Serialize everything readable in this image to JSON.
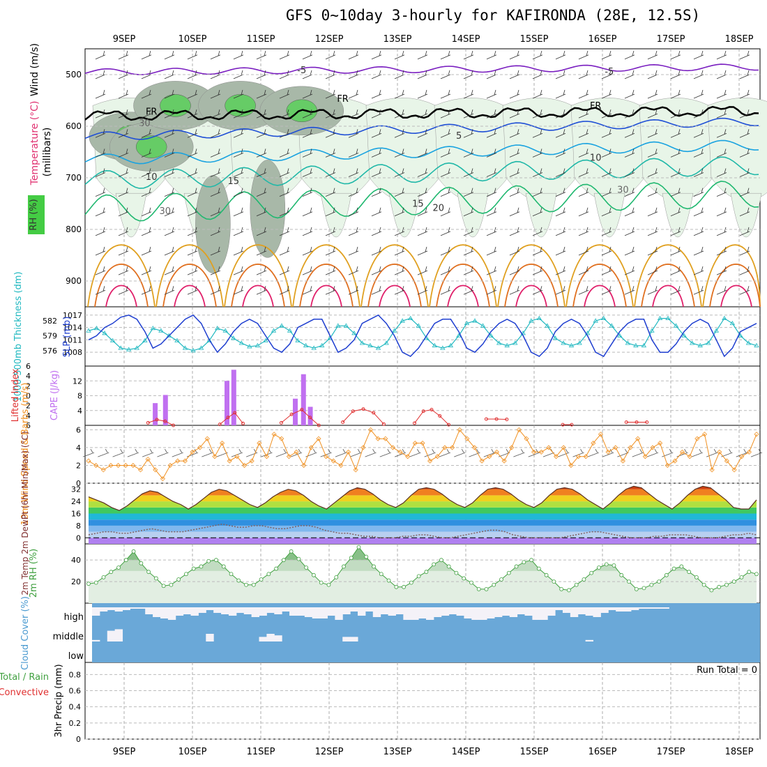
{
  "title": "GFS 0~10day 3-hourly for KAFIRONDA (28E, 12.5S)",
  "date_labels": [
    "9SEP",
    "10SEP",
    "11SEP",
    "12SEP",
    "13SEP",
    "14SEP",
    "15SEP",
    "16SEP",
    "17SEP",
    "18SEP"
  ],
  "colors": {
    "rh_fill": [
      "#e8f5e8",
      "#bfe0bf",
      "#a8b8a8",
      "#66cc66",
      "#33cc33"
    ],
    "temp_lines": [
      "#7a1fc0",
      "#1f4fd6",
      "#1aa3e0",
      "#20b8a8",
      "#20b870",
      "#e0a020",
      "#e07020",
      "#e0206a"
    ],
    "slp": "#1f3fd0",
    "thickness": "#20b8c0",
    "cape": "#c070f0",
    "li": "#e03030",
    "wind": "#f09020",
    "rh2m": "#40a040",
    "cloud": "#6aa8d8",
    "cloud_clear": "#f4f2f8"
  },
  "chart_data": [
    {
      "type": "contour",
      "panel": "upper-air",
      "ylabel_parts": [
        "Wind (m/s)",
        "Temperature (°C)",
        "RH (%)"
      ],
      "yunit": "(millibars)",
      "yticks": [
        500,
        600,
        700,
        800,
        900
      ],
      "ylim": [
        450,
        950
      ],
      "freezing_label": "FR",
      "contour_labels": [
        {
          "text": "-5",
          "day": 2.6,
          "p": 497
        },
        {
          "text": "-5",
          "day": 7.1,
          "p": 500
        },
        {
          "text": "FR",
          "day": 0.4,
          "p": 578
        },
        {
          "text": "FR",
          "day": 3.2,
          "p": 553
        },
        {
          "text": "FR",
          "day": 6.9,
          "p": 566
        },
        {
          "text": "5",
          "day": 4.9,
          "p": 624
        },
        {
          "text": "10",
          "day": 0.4,
          "p": 704
        },
        {
          "text": "10",
          "day": 6.9,
          "p": 667
        },
        {
          "text": "15",
          "day": 1.6,
          "p": 712
        },
        {
          "text": "15",
          "day": 4.3,
          "p": 756
        },
        {
          "text": "20",
          "day": 4.6,
          "p": 764
        },
        {
          "text": "30",
          "day": 0.3,
          "p": 600
        },
        {
          "text": "30",
          "day": 0.6,
          "p": 770
        },
        {
          "text": "30",
          "day": 7.3,
          "p": 729
        }
      ]
    },
    {
      "type": "line",
      "panel": "pressure",
      "ylabel": "SLP (mb)",
      "ylabel_right": "1000-500mb Thickness (dm)",
      "yticks_left": [
        576,
        579,
        582
      ],
      "yticks_right": [
        1008,
        1011,
        1014,
        1017
      ],
      "ylim_right": [
        1006,
        1018
      ],
      "series": [
        {
          "values": [
            1011,
            1012,
            1014,
            1015,
            1016.5,
            1017,
            1016,
            1013,
            1009,
            1010,
            1012,
            1014,
            1016,
            1017,
            1015,
            1011,
            1008,
            1010,
            1013,
            1015,
            1016,
            1015,
            1012,
            1009,
            1008,
            1010,
            1014,
            1015,
            1016,
            1016,
            1012,
            1008,
            1009,
            1011,
            1015,
            1016,
            1017,
            1015,
            1012,
            1008,
            1007,
            1009,
            1012,
            1015,
            1016,
            1016,
            1013,
            1009,
            1008,
            1010,
            1013,
            1015,
            1016,
            1015,
            1012,
            1008,
            1007,
            1009,
            1013,
            1015,
            1016,
            1015,
            1012,
            1008,
            1007,
            1010,
            1013,
            1015,
            1016,
            1016,
            1011,
            1008,
            1008,
            1010,
            1013,
            1015,
            1016,
            1015,
            1011,
            1007,
            1009,
            1013,
            1014,
            1015
          ]
        },
        {
          "values": [
            580,
            580.5,
            579.5,
            578,
            576.5,
            576.2,
            576.5,
            578,
            580.5,
            580,
            579,
            578,
            576.5,
            576,
            576.5,
            578,
            580.5,
            580,
            578.5,
            577.5,
            576.8,
            577,
            578,
            580,
            581,
            580,
            578,
            577,
            576.5,
            577,
            578.5,
            581,
            581,
            579.5,
            577.5,
            577,
            576.5,
            577.5,
            580,
            582,
            582.5,
            581,
            578.5,
            577,
            576.5,
            577,
            579,
            581.5,
            582,
            581,
            579,
            577.5,
            577,
            577.5,
            579.5,
            582,
            582.5,
            581,
            578.5,
            577.5,
            577,
            577.5,
            579.5,
            582,
            582.5,
            581,
            579,
            577.5,
            577,
            577,
            580,
            582.5,
            582.5,
            581,
            579,
            577.5,
            577,
            577.5,
            580,
            582.5,
            581.5,
            579,
            577.5,
            577
          ]
        }
      ]
    },
    {
      "type": "bar",
      "panel": "instability",
      "ylabel": "Lifted Index",
      "ylabel_right": "CAPE (J/kg)",
      "yticks_left": [
        -6,
        -4,
        -2,
        0,
        2,
        4,
        6
      ],
      "yticks_right": [
        4,
        8,
        12
      ],
      "ylim_right": [
        0,
        16
      ],
      "cape": [
        {
          "day": 0.45,
          "v": 6
        },
        {
          "day": 0.6,
          "v": 8.2
        },
        {
          "day": 1.5,
          "v": 12
        },
        {
          "day": 1.6,
          "v": 15
        },
        {
          "day": 2.5,
          "v": 7.2
        },
        {
          "day": 2.62,
          "v": 13.8
        },
        {
          "day": 2.72,
          "v": 5
        }
      ],
      "li_values": [
        {
          "day": 0.35,
          "v": 0.8
        },
        {
          "day": 0.48,
          "v": 1.8
        },
        {
          "day": 0.6,
          "v": 1.3
        },
        {
          "day": 0.72,
          "v": 0
        },
        {
          "day": 1.4,
          "v": 0.3
        },
        {
          "day": 1.52,
          "v": 2.5
        },
        {
          "day": 1.62,
          "v": 4
        },
        {
          "day": 1.74,
          "v": 0.6
        },
        {
          "day": 2.3,
          "v": 0.8
        },
        {
          "day": 2.45,
          "v": 3.5
        },
        {
          "day": 2.6,
          "v": 5
        },
        {
          "day": 2.72,
          "v": 2.5
        },
        {
          "day": 2.85,
          "v": 0
        },
        {
          "day": 3.2,
          "v": 1
        },
        {
          "day": 3.35,
          "v": 4.5
        },
        {
          "day": 3.5,
          "v": 5.2
        },
        {
          "day": 3.65,
          "v": 4
        },
        {
          "day": 3.8,
          "v": 0.4
        },
        {
          "day": 4.25,
          "v": 0.7
        },
        {
          "day": 4.38,
          "v": 4.5
        },
        {
          "day": 4.5,
          "v": 5
        },
        {
          "day": 4.62,
          "v": 3
        },
        {
          "day": 4.75,
          "v": 0.2
        },
        {
          "day": 5.3,
          "v": 2
        },
        {
          "day": 5.45,
          "v": 2
        },
        {
          "day": 5.6,
          "v": 1.9
        },
        {
          "day": 6.42,
          "v": 0.2
        },
        {
          "day": 6.55,
          "v": 0.2
        },
        {
          "day": 7.35,
          "v": 1
        },
        {
          "day": 7.5,
          "v": 1
        },
        {
          "day": 7.65,
          "v": 1
        }
      ]
    },
    {
      "type": "line",
      "panel": "wind",
      "ylabel": "10m Wind Speed & Barbs (m/s)",
      "yticks": [
        0,
        2,
        4,
        6
      ],
      "ylim": [
        0,
        6.5
      ],
      "values": [
        2.5,
        2,
        1.5,
        2,
        2,
        2,
        2,
        1.5,
        2.7,
        1.5,
        0.5,
        2,
        2.5,
        2.5,
        3.5,
        4,
        5,
        3,
        4.5,
        2.5,
        3,
        2,
        2.5,
        4.5,
        3,
        5.5,
        5,
        3,
        3.5,
        2,
        4,
        5,
        3,
        2.5,
        2,
        3.5,
        1.5,
        4,
        6,
        5,
        5,
        4,
        3.5,
        3,
        4.5,
        4.5,
        2.5,
        3,
        4,
        4,
        6,
        5,
        4,
        2.5,
        3,
        3.5,
        2.5,
        4,
        6,
        5,
        3.5,
        3.5,
        4,
        3,
        4,
        2,
        3,
        3,
        4.5,
        5.5,
        3.5,
        4,
        2.5,
        4,
        5,
        3,
        4,
        4.5,
        2,
        2.5,
        3.5,
        3,
        5,
        5.5,
        1.5,
        3.5,
        2.5,
        1.5,
        3,
        3.5,
        5.5
      ]
    },
    {
      "type": "area",
      "panel": "temperature",
      "ylabel": "2m Temp 2m DewPt (6hr Min/Max) (°C)",
      "yticks": [
        0,
        8,
        16,
        24,
        32
      ],
      "ylim": [
        -4,
        36
      ],
      "temp_values": [
        27,
        25,
        23,
        20,
        18,
        21,
        25,
        29,
        31,
        30,
        27,
        24,
        22,
        19,
        22,
        26,
        30,
        32,
        31,
        28,
        25,
        22,
        20,
        23,
        27,
        30,
        32,
        31,
        28,
        24,
        21,
        19,
        23,
        27,
        31,
        33,
        32,
        29,
        25,
        22,
        20,
        23,
        28,
        32,
        33,
        32,
        29,
        25,
        22,
        20,
        23,
        28,
        32,
        33,
        32,
        29,
        25,
        22,
        20,
        23,
        28,
        32,
        33,
        32,
        29,
        25,
        22,
        19,
        23,
        28,
        32,
        34,
        33,
        29,
        25,
        22,
        19,
        23,
        28,
        32,
        34,
        33,
        29,
        25,
        20,
        19,
        19,
        25
      ],
      "dew_values": [
        2,
        3,
        4,
        4,
        3,
        3,
        4,
        5,
        6,
        5,
        4,
        4,
        4,
        5,
        6,
        7,
        8,
        9,
        8,
        7,
        7,
        8,
        8,
        7,
        6,
        6,
        7,
        8,
        8,
        7,
        5,
        4,
        3,
        3,
        2,
        1,
        1,
        0,
        0,
        0,
        1,
        1,
        2,
        2,
        1,
        0,
        0,
        1,
        2,
        3,
        4,
        5,
        5,
        4,
        2,
        1,
        0,
        0,
        0,
        0,
        0,
        1,
        2,
        3,
        4,
        4,
        3,
        2,
        1,
        0,
        0,
        0,
        1,
        1,
        2,
        2,
        2,
        1,
        0,
        0,
        0,
        1,
        2,
        2,
        3,
        2
      ]
    },
    {
      "type": "area",
      "panel": "rh",
      "ylabel": "2m RH (%)",
      "yticks": [
        20,
        40
      ],
      "ylim": [
        0,
        55
      ],
      "values": [
        18,
        19,
        24,
        29,
        33,
        40,
        48,
        37,
        29,
        23,
        16,
        17,
        22,
        27,
        32,
        34,
        39,
        40,
        34,
        27,
        21,
        17,
        17,
        22,
        27,
        32,
        40,
        48,
        41,
        33,
        26,
        19,
        17,
        24,
        34,
        42,
        52,
        43,
        34,
        27,
        21,
        15,
        15,
        19,
        25,
        29,
        36,
        40,
        34,
        28,
        23,
        19,
        13,
        13,
        17,
        22,
        28,
        34,
        38,
        40,
        32,
        26,
        20,
        13,
        12,
        17,
        22,
        28,
        33,
        36,
        35,
        26,
        20,
        13,
        14,
        17,
        20,
        26,
        32,
        34,
        29,
        24,
        17,
        12,
        15,
        17,
        20,
        24,
        29,
        27
      ]
    },
    {
      "type": "heatmap",
      "panel": "cloud",
      "ylabel": "Cloud Cover (%)",
      "levels": [
        "high",
        "middle",
        "low"
      ],
      "high_clear": [
        0.6,
        0.3,
        0.2,
        0.3,
        0.2,
        0.1,
        0.1,
        0.5,
        0.7,
        0.8,
        0.9,
        0.6,
        0.5,
        0.6,
        0.4,
        0.2,
        0.4,
        0.5,
        0.6,
        0.4,
        0.5,
        0.7,
        0.6,
        0.4,
        0.5,
        0.3,
        0.6,
        0.6,
        0.7,
        0.8,
        0.8,
        0.6,
        0.9,
        0.5,
        0.3,
        0.6,
        0.3,
        0.7,
        0.5,
        0.6,
        0.5,
        0.9,
        0.9,
        0.8,
        0.9,
        0.7,
        0.6,
        0.5,
        0.6,
        0.8,
        0.9,
        0.9,
        0.8,
        0.7,
        0.6,
        0.7,
        0.5,
        0.6,
        0.9,
        0.9,
        0.6,
        0.2,
        0.4,
        0.7,
        0.5,
        0.6,
        0.7,
        0.4,
        0.2,
        0.3,
        0.3,
        0.2,
        0.1,
        0.1,
        0.1,
        0.1,
        0.0,
        0.0,
        0.0,
        0.0,
        0.0,
        0.0,
        0.0,
        0.0,
        0.0,
        0.0,
        0.0,
        0.0
      ],
      "mid_clear": [
        0.1,
        0.0,
        0.7,
        0.8,
        0.0,
        0.0,
        0.0,
        0.0,
        0.0,
        0.0,
        0.0,
        0.0,
        0.0,
        0.0,
        0.0,
        0.5,
        0.0,
        0.0,
        0.0,
        0.0,
        0.0,
        0.0,
        0.3,
        0.5,
        0.4,
        0.0,
        0.0,
        0.0,
        0.0,
        0.0,
        0.0,
        0.0,
        0.0,
        0.3,
        0.3,
        0.0,
        0.0,
        0.0,
        0.0,
        0.0,
        0.0,
        0.0,
        0.0,
        0.0,
        0.0,
        0.0,
        0.0,
        0.0,
        0.0,
        0.0,
        0.0,
        0.0,
        0.0,
        0.0,
        0.0,
        0.0,
        0.0,
        0.0,
        0.0,
        0.0,
        0.0,
        0.0,
        0.0,
        0.0,
        0.0,
        0.1,
        0.0,
        0.0,
        0.0,
        0.0,
        0.0,
        0.0,
        0.0,
        0.0,
        0.0,
        0.0,
        0.0,
        0.0,
        0.0,
        0.0,
        0.0,
        0.0,
        0.0,
        0.0,
        0.0,
        0.0,
        0.0,
        0.0
      ]
    },
    {
      "type": "bar",
      "panel": "precip",
      "ylabel": "3hr Precip (mm)",
      "ylabel_parts": [
        "Total / Rain",
        "Convective"
      ],
      "yticks": [
        0,
        0.2,
        0.4,
        0.6,
        0.8
      ],
      "ylim": [
        0,
        0.95
      ],
      "run_total": "Run Total = 0",
      "values": []
    }
  ]
}
